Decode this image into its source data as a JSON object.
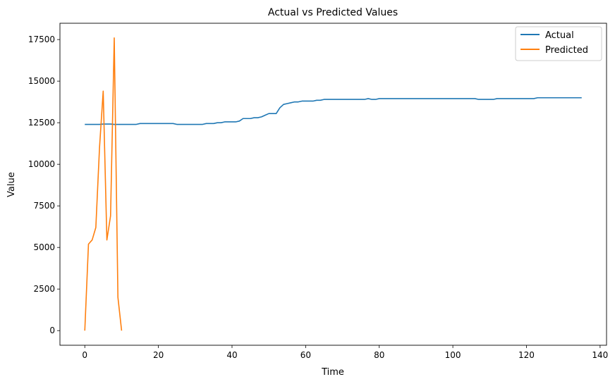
{
  "chart_data": {
    "type": "line",
    "title": "Actual vs Predicted Values",
    "xlabel": "Time",
    "ylabel": "Value",
    "xlim": [
      -6.75,
      141.75
    ],
    "ylim": [
      -880,
      18480
    ],
    "xticks": [
      0,
      20,
      40,
      60,
      80,
      100,
      120,
      140
    ],
    "yticks": [
      0,
      2500,
      5000,
      7500,
      10000,
      12500,
      15000,
      17500
    ],
    "grid": false,
    "legend": "top-right",
    "series": [
      {
        "name": "Actual",
        "color": "#1f77b4",
        "x": [
          0,
          1,
          2,
          3,
          4,
          5,
          6,
          7,
          8,
          9,
          10,
          11,
          12,
          13,
          14,
          15,
          16,
          17,
          18,
          19,
          20,
          21,
          22,
          23,
          24,
          25,
          26,
          27,
          28,
          29,
          30,
          31,
          32,
          33,
          34,
          35,
          36,
          37,
          38,
          39,
          40,
          41,
          42,
          43,
          44,
          45,
          46,
          47,
          48,
          49,
          50,
          51,
          52,
          53,
          54,
          55,
          56,
          57,
          58,
          59,
          60,
          61,
          62,
          63,
          64,
          65,
          66,
          67,
          68,
          69,
          70,
          71,
          72,
          73,
          74,
          75,
          76,
          77,
          78,
          79,
          80,
          81,
          82,
          83,
          84,
          85,
          86,
          87,
          88,
          89,
          90,
          91,
          92,
          93,
          94,
          95,
          96,
          97,
          98,
          99,
          100,
          101,
          102,
          103,
          104,
          105,
          106,
          107,
          108,
          109,
          110,
          111,
          112,
          113,
          114,
          115,
          116,
          117,
          118,
          119,
          120,
          121,
          122,
          123,
          124,
          125,
          126,
          127,
          128,
          129,
          130,
          131,
          132,
          133,
          134,
          135
        ],
        "values": [
          12400,
          12400,
          12400,
          12400,
          12400,
          12420,
          12420,
          12420,
          12400,
          12400,
          12400,
          12400,
          12400,
          12400,
          12400,
          12450,
          12450,
          12450,
          12450,
          12450,
          12450,
          12450,
          12450,
          12450,
          12450,
          12400,
          12400,
          12400,
          12400,
          12400,
          12400,
          12400,
          12400,
          12450,
          12450,
          12450,
          12500,
          12500,
          12550,
          12550,
          12550,
          12550,
          12600,
          12750,
          12750,
          12750,
          12800,
          12800,
          12850,
          12950,
          13050,
          13050,
          13050,
          13400,
          13600,
          13650,
          13700,
          13750,
          13750,
          13800,
          13800,
          13800,
          13800,
          13850,
          13850,
          13900,
          13900,
          13900,
          13900,
          13900,
          13900,
          13900,
          13900,
          13900,
          13900,
          13900,
          13900,
          13950,
          13900,
          13900,
          13950,
          13950,
          13950,
          13950,
          13950,
          13950,
          13950,
          13950,
          13950,
          13950,
          13950,
          13950,
          13950,
          13950,
          13950,
          13950,
          13950,
          13950,
          13950,
          13950,
          13950,
          13950,
          13950,
          13950,
          13950,
          13950,
          13950,
          13900,
          13900,
          13900,
          13900,
          13900,
          13950,
          13950,
          13950,
          13950,
          13950,
          13950,
          13950,
          13950,
          13950,
          13950,
          13950,
          14000,
          14000,
          14000,
          14000,
          14000,
          14000,
          14000,
          14000,
          14000,
          14000,
          14000,
          14000,
          14000
        ]
      },
      {
        "name": "Predicted",
        "color": "#ff7f0e",
        "x": [
          0,
          1,
          2,
          3,
          4,
          5,
          6,
          7,
          8,
          9,
          10
        ],
        "values": [
          0,
          5200,
          5450,
          6200,
          11000,
          14400,
          5450,
          6900,
          17600,
          2000,
          0
        ]
      }
    ]
  }
}
